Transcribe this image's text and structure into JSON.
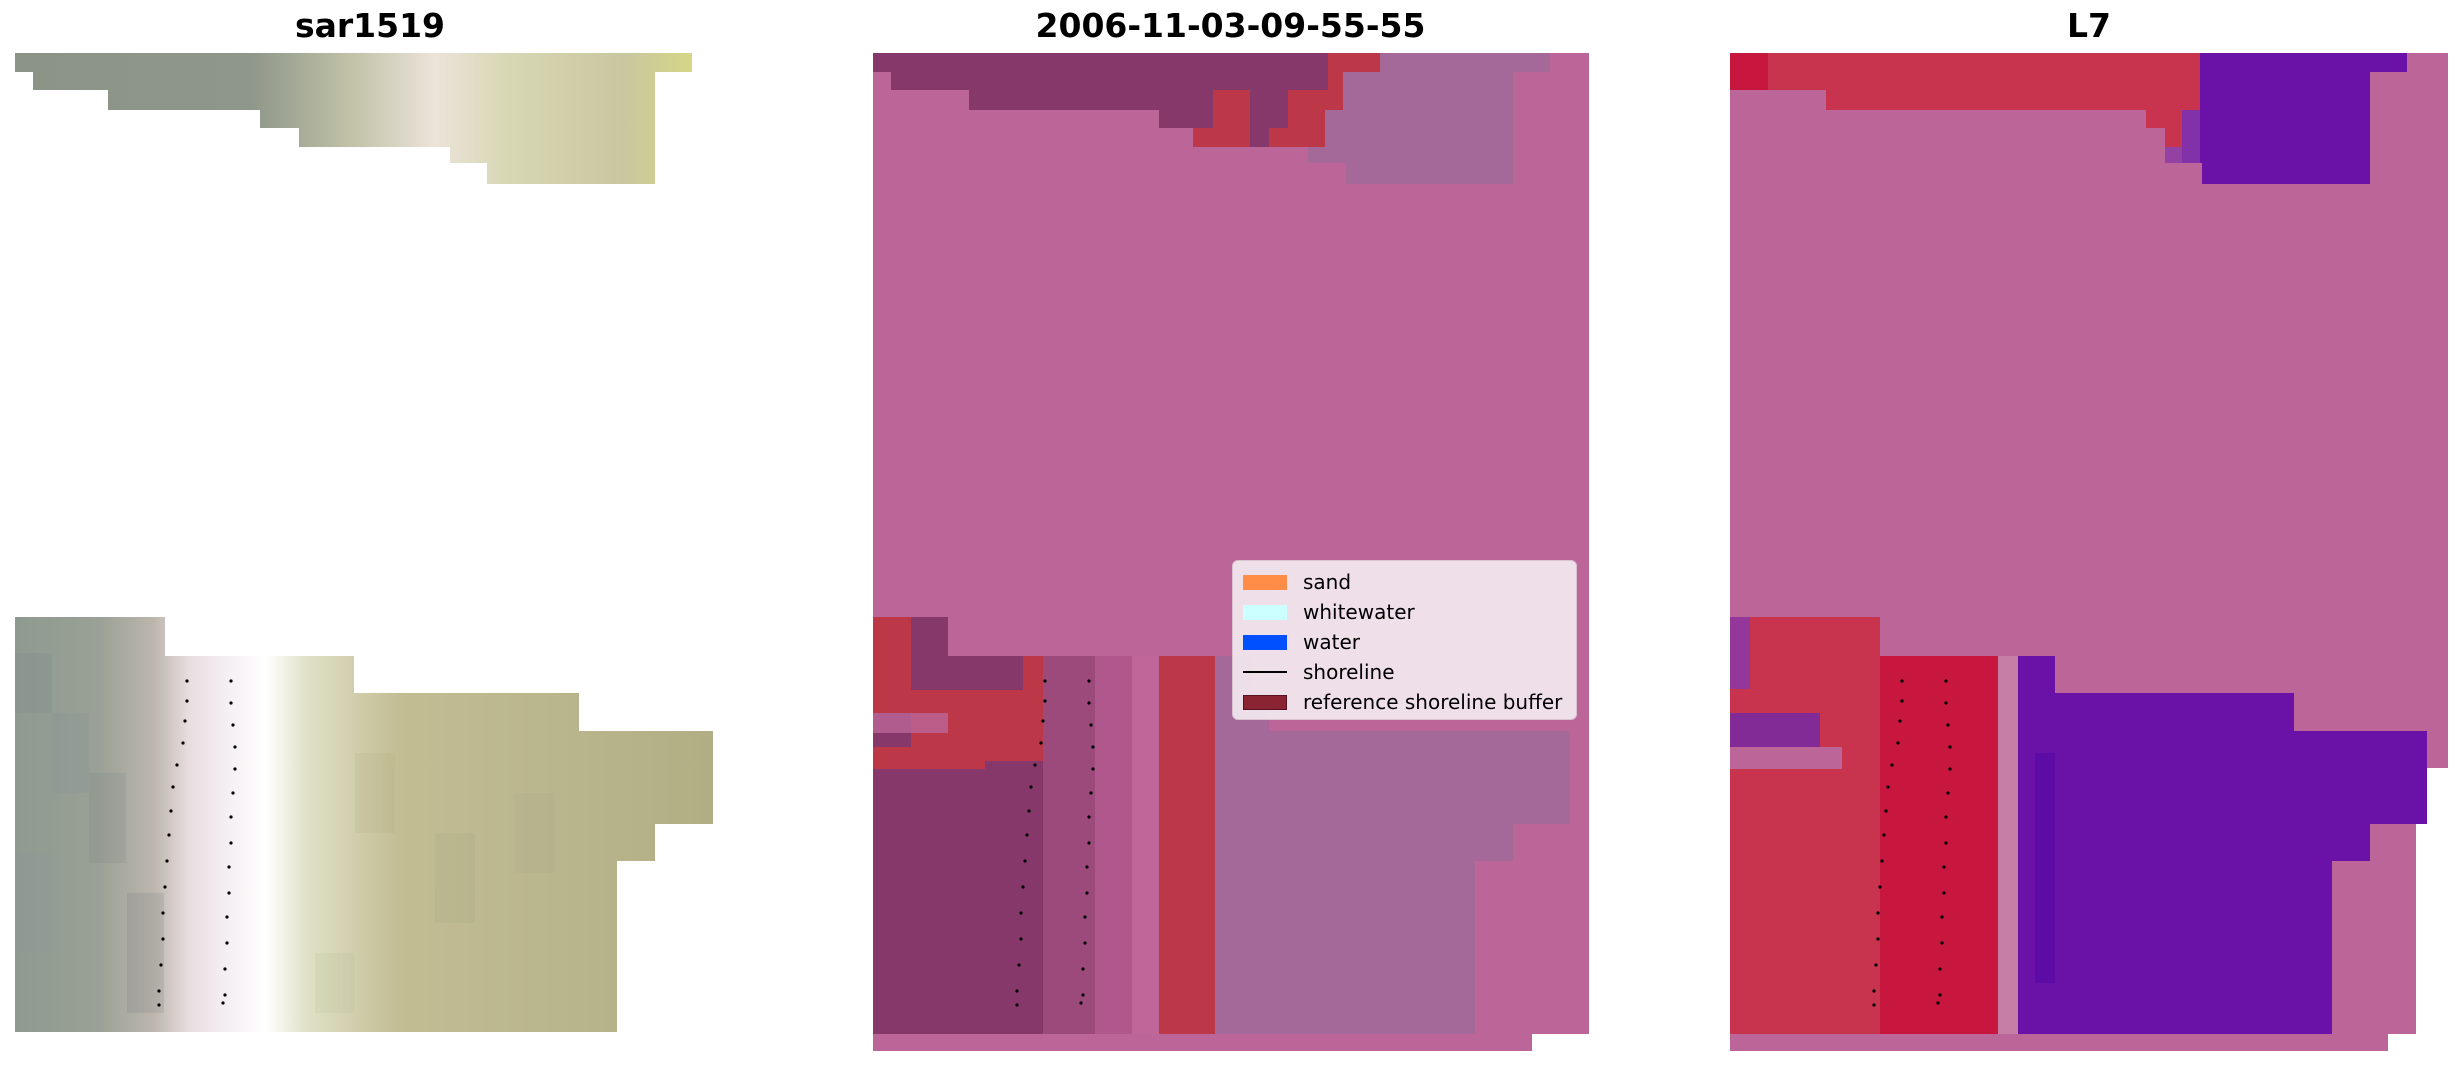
{
  "panels": {
    "left_title": "sar1519",
    "middle_title": "2006-11-03-09-55-55",
    "right_title": "L7"
  },
  "legend": {
    "items": [
      {
        "label": "sand",
        "kind": "patch",
        "color": "#ff8c47"
      },
      {
        "label": "whitewater",
        "kind": "patch",
        "color": "#ccffff"
      },
      {
        "label": "water",
        "kind": "patch",
        "color": "#0050ff"
      },
      {
        "label": "shoreline",
        "kind": "line",
        "color": "#000000"
      },
      {
        "label": "reference shoreline buffer",
        "kind": "patch",
        "color": "#8b2432"
      }
    ]
  },
  "colors": {
    "background_pink": "#bb6598",
    "dark_plum": "#87386a",
    "red": "#bc3748",
    "mauve": "#a46899",
    "crimson": "#c8173e",
    "purple": "#6a12a8"
  }
}
